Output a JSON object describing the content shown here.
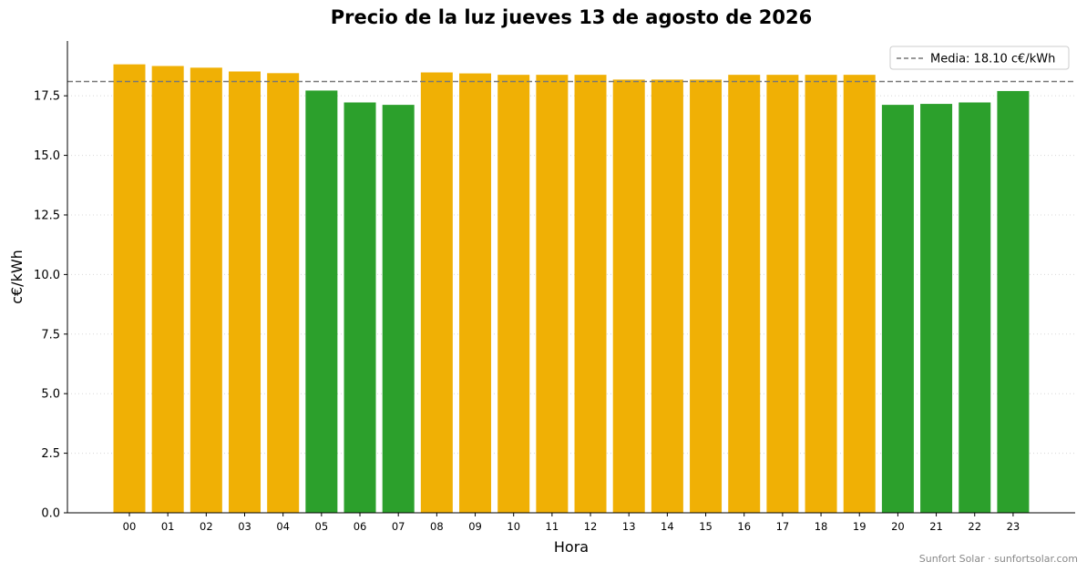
{
  "chart_data": {
    "type": "bar",
    "title": "Precio de la luz jueves 13 de agosto de 2026",
    "xlabel": "Hora",
    "ylabel": "c€/kWh",
    "ylim": [
      0,
      19.8
    ],
    "yticks": [
      "0.0",
      "2.5",
      "5.0",
      "7.5",
      "10.0",
      "12.5",
      "15.0",
      "17.5"
    ],
    "ytick_values": [
      0,
      2.5,
      5,
      7.5,
      10,
      12.5,
      15,
      17.5
    ],
    "categories": [
      "00",
      "01",
      "02",
      "03",
      "04",
      "05",
      "06",
      "07",
      "08",
      "09",
      "10",
      "11",
      "12",
      "13",
      "14",
      "15",
      "16",
      "17",
      "18",
      "19",
      "20",
      "21",
      "22",
      "23"
    ],
    "values": [
      18.82,
      18.75,
      18.68,
      18.52,
      18.45,
      17.72,
      17.22,
      17.12,
      18.48,
      18.44,
      18.38,
      18.38,
      18.38,
      18.18,
      18.18,
      18.18,
      18.38,
      18.38,
      18.38,
      18.38,
      17.12,
      17.16,
      17.22,
      17.7
    ],
    "colors": [
      "#f0b005",
      "#f0b005",
      "#f0b005",
      "#f0b005",
      "#f0b005",
      "#2ca02c",
      "#2ca02c",
      "#2ca02c",
      "#f0b005",
      "#f0b005",
      "#f0b005",
      "#f0b005",
      "#f0b005",
      "#f0b005",
      "#f0b005",
      "#f0b005",
      "#f0b005",
      "#f0b005",
      "#f0b005",
      "#f0b005",
      "#2ca02c",
      "#2ca02c",
      "#2ca02c",
      "#2ca02c"
    ],
    "average": {
      "value": 18.1,
      "label": "Media: 18.10 c€/kWh",
      "color": "#777777",
      "style": "dashed"
    },
    "legend_position": "top-right",
    "grid": "horizontal-dotted"
  },
  "footer": "Sunfort Solar · sunfortsolar.com"
}
